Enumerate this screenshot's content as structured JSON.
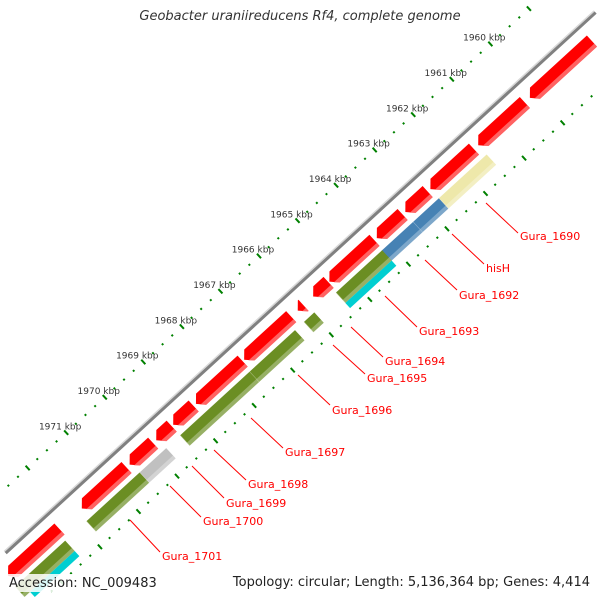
{
  "title": "Geobacter uraniireducens Rf4, complete genome",
  "footer": {
    "accession": "Accession: NC_009483",
    "summary": "Topology: circular; Length: 5,136,364 bp; Genes: 4,414"
  },
  "ruler": {
    "labels": [
      "1960 kbp",
      "1961 kbp",
      "1962 kbp",
      "1963 kbp",
      "1964 kbp",
      "1965 kbp",
      "1966 kbp",
      "1967 kbp",
      "1968 kbp",
      "1969 kbp",
      "1970 kbp",
      "1971 kbp"
    ],
    "values_kbp": [
      1960,
      1961,
      1962,
      1963,
      1964,
      1965,
      1966,
      1967,
      1968,
      1969,
      1970,
      1971
    ]
  },
  "colors": {
    "backbone": "#808080",
    "cds": "#ff0000",
    "green": "#6b8e23",
    "blue": "#4682b4",
    "yellow": "#eee8aa",
    "gray": "#c0c0c0",
    "cyan": "#00ced1",
    "ticks": "#008000",
    "label": "#ff0000"
  },
  "cds_features": [
    {
      "start_kbp": 1957.1,
      "end_kbp": 1960.14
    },
    {
      "start_kbp": 1960.27,
      "end_kbp": 1961.48
    },
    {
      "start_kbp": 1961.59,
      "end_kbp": 1962.72
    },
    {
      "start_kbp": 1962.79,
      "end_kbp": 1963.37
    },
    {
      "start_kbp": 1963.44,
      "end_kbp": 1964.11
    },
    {
      "start_kbp": 1964.17,
      "end_kbp": 1965.34
    },
    {
      "start_kbp": 1965.36,
      "end_kbp": 1965.76
    },
    {
      "start_kbp": 1966.01,
      "end_kbp": 1966.16
    },
    {
      "start_kbp": 1966.33,
      "end_kbp": 1967.55
    },
    {
      "start_kbp": 1967.59,
      "end_kbp": 1968.8
    },
    {
      "start_kbp": 1968.86,
      "end_kbp": 1969.39
    },
    {
      "start_kbp": 1969.43,
      "end_kbp": 1969.83
    },
    {
      "start_kbp": 1969.91,
      "end_kbp": 1970.52
    },
    {
      "start_kbp": 1970.6,
      "end_kbp": 1971.76
    },
    {
      "start_kbp": 1972.34,
      "end_kbp": 1973.92
    }
  ],
  "category_features": [
    {
      "start_kbp": 1961.48,
      "end_kbp": 1962.72,
      "color": "yellow"
    },
    {
      "start_kbp": 1962.72,
      "end_kbp": 1963.39,
      "color": "blue"
    },
    {
      "start_kbp": 1963.39,
      "end_kbp": 1964.21,
      "color": "blue"
    },
    {
      "start_kbp": 1964.19,
      "end_kbp": 1965.39,
      "color": "green"
    },
    {
      "start_kbp": 1965.95,
      "end_kbp": 1966.22,
      "color": "green"
    },
    {
      "start_kbp": 1966.45,
      "end_kbp": 1967.63,
      "color": "green"
    },
    {
      "start_kbp": 1967.63,
      "end_kbp": 1969.43,
      "color": "green"
    },
    {
      "start_kbp": 1969.79,
      "end_kbp": 1970.48,
      "color": "gray"
    },
    {
      "start_kbp": 1970.48,
      "end_kbp": 1971.86,
      "color": "green"
    },
    {
      "start_kbp": 1972.41,
      "end_kbp": 1974.0,
      "color": "green"
    }
  ],
  "cyan_features": [
    {
      "start_kbp": 1964.19,
      "end_kbp": 1965.39
    },
    {
      "start_kbp": 1972.41,
      "end_kbp": 1974.0
    }
  ],
  "gene_labels": [
    "Gura_1690",
    "hisH",
    "Gura_1692",
    "Gura_1693",
    "Gura_1694",
    "Gura_1695",
    "Gura_1696",
    "Gura_1697",
    "Gura_1698",
    "Gura_1699",
    "Gura_1700",
    "Gura_1701"
  ]
}
